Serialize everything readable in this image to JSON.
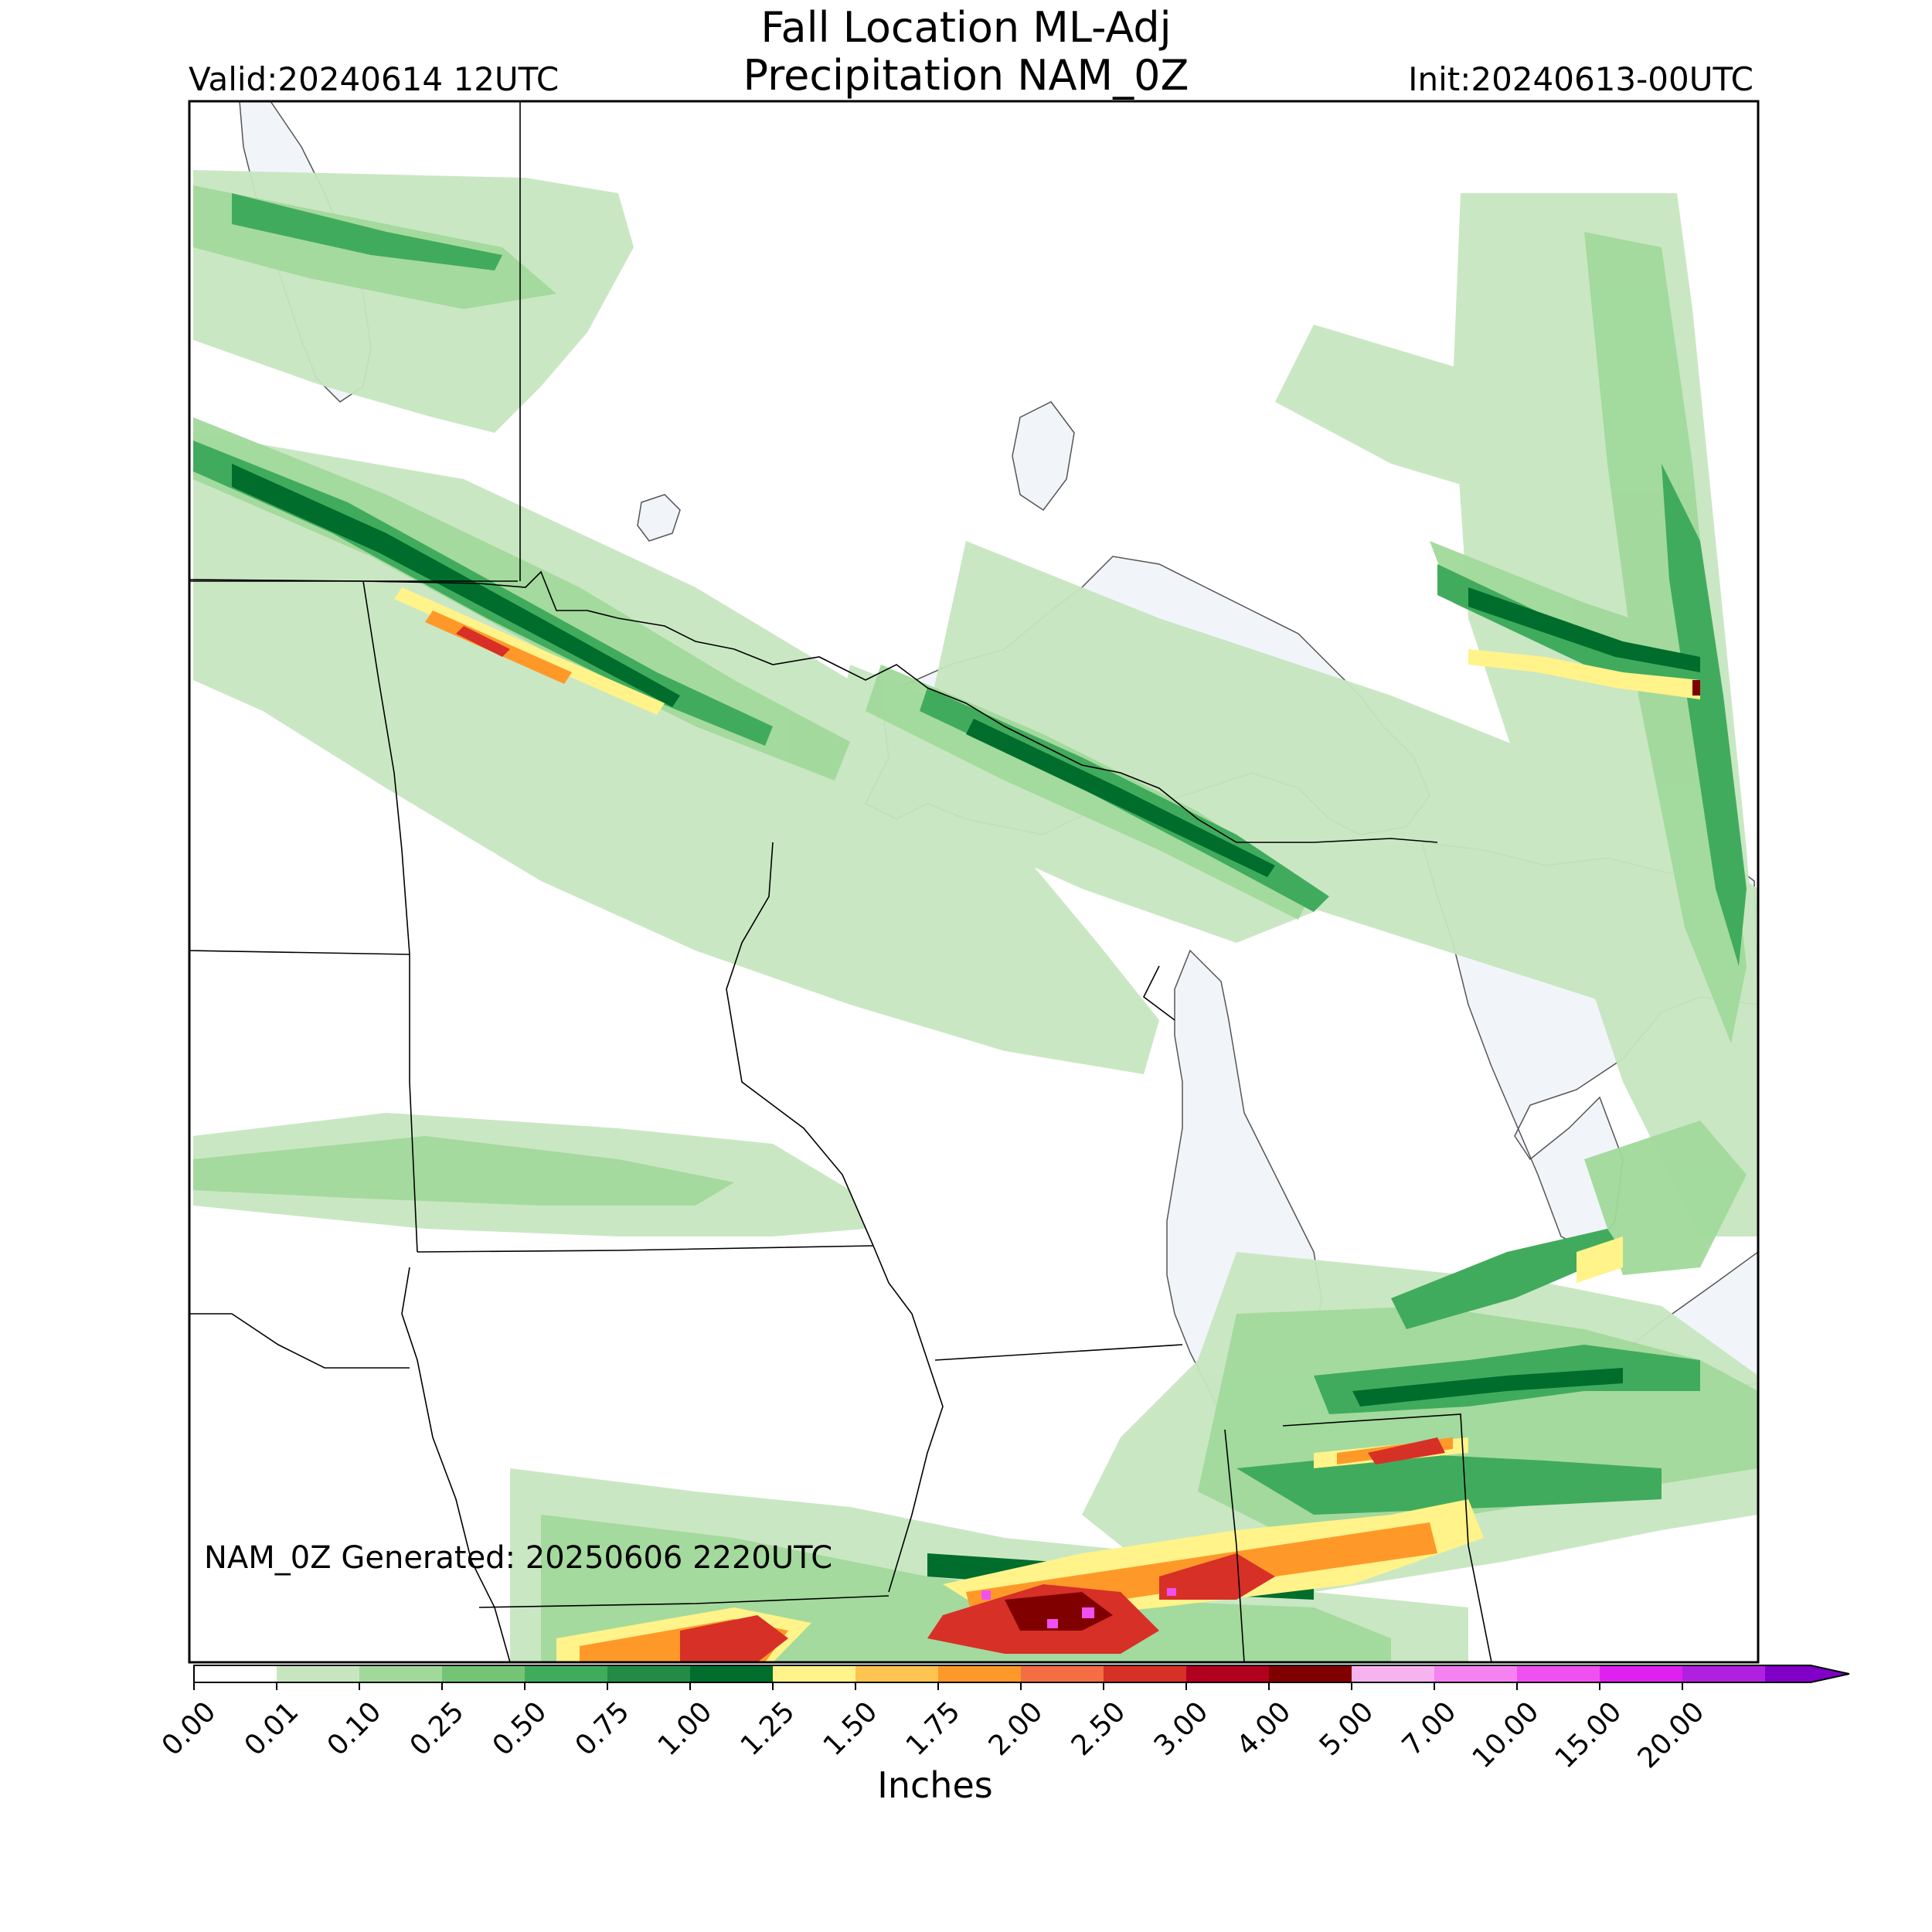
{
  "title": {
    "line1": "Fall Location ML-Adj",
    "line2": "Precipitation NAM_0Z"
  },
  "valid": "Valid:20240614 12UTC",
  "init": "Init:20240613-00UTC",
  "generated": "NAM_0Z Generated: 20250606 2220UTC",
  "colorbar": {
    "unit": "Inches",
    "ticks": [
      "0.00",
      "0.01",
      "0.10",
      "0.25",
      "0.50",
      "0.75",
      "1.00",
      "1.25",
      "1.50",
      "1.75",
      "2.00",
      "2.50",
      "3.00",
      "4.00",
      "5.00",
      "7.00",
      "10.00",
      "15.00",
      "20.00"
    ],
    "colors": [
      "#ffffff",
      "#c7e6c0",
      "#a1d99b",
      "#74c476",
      "#41ab5d",
      "#238b45",
      "#006d2c",
      "#fff38a",
      "#fec44f",
      "#fe9929",
      "#f46d43",
      "#d73027",
      "#b2001f",
      "#800000",
      "#f7b2f0",
      "#f582f0",
      "#f050f0",
      "#e020f0",
      "#b020e0",
      "#8000c8"
    ]
  },
  "map": {
    "water_color": "#f1f5fa",
    "border_color": "#000000"
  }
}
